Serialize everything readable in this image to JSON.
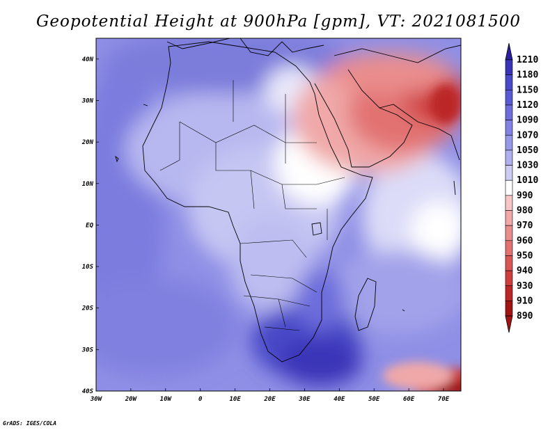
{
  "title": "Geopotential Height at 900hPa [gpm], VT: 2021081500",
  "credit": "GrADS: IGES/COLA",
  "map": {
    "lon_range": [
      -30,
      75
    ],
    "lat_range": [
      -40,
      45
    ],
    "x_ticks": [
      "30W",
      "20W",
      "10W",
      "0",
      "10E",
      "20E",
      "30E",
      "40E",
      "50E",
      "60E",
      "70E"
    ],
    "y_ticks": [
      "40N",
      "30N",
      "20N",
      "10N",
      "EQ",
      "10S",
      "20S",
      "30S",
      "40S"
    ]
  },
  "colorbar": {
    "levels": [
      "1210",
      "1180",
      "1150",
      "1120",
      "1090",
      "1070",
      "1050",
      "1030",
      "1010",
      "990",
      "980",
      "970",
      "960",
      "950",
      "940",
      "930",
      "910",
      "890"
    ],
    "colors": [
      "#2a1f9c",
      "#3a35b8",
      "#4a4ac8",
      "#5a5ad3",
      "#6d6ddc",
      "#8282e2",
      "#9898e8",
      "#b0b0ee",
      "#cdcdf4",
      "#ffffff",
      "#f7c6c6",
      "#f0a8a8",
      "#ea8d8d",
      "#e27272",
      "#d85656",
      "#cd3e3e",
      "#bb2626",
      "#a01414"
    ]
  }
}
